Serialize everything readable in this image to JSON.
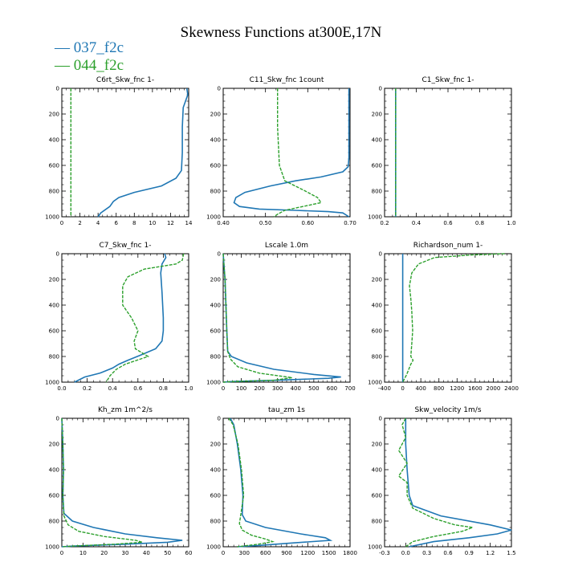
{
  "title": "Skewness Functions at300E,17N",
  "legend": [
    {
      "label": "— 037_f2c",
      "color": "#1f77b4"
    },
    {
      "label": "— 044_f2c",
      "color": "#2ca02c"
    }
  ],
  "chart_data": [
    {
      "type": "line",
      "title": "C6rt_Skw_fnc 1-",
      "xlim": [
        0,
        14
      ],
      "ylim": [
        1000,
        0
      ],
      "xticks": [
        "0",
        "2",
        "4",
        "6",
        "8",
        "10",
        "12",
        "14"
      ],
      "yticks": [
        "0",
        "200",
        "400",
        "600",
        "800",
        "1000"
      ],
      "series": [
        {
          "name": "037_f2c",
          "points": [
            [
              13.8,
              0
            ],
            [
              13.9,
              50
            ],
            [
              13.4,
              150
            ],
            [
              13.3,
              300
            ],
            [
              13.3,
              500
            ],
            [
              13.2,
              640
            ],
            [
              12.6,
              700
            ],
            [
              11,
              760
            ],
            [
              8,
              810
            ],
            [
              6.3,
              850
            ],
            [
              5.7,
              880
            ],
            [
              5.3,
              920
            ],
            [
              4.3,
              970
            ],
            [
              4,
              1000
            ]
          ]
        },
        {
          "name": "044_f2c",
          "points": [
            [
              1,
              0
            ],
            [
              1,
              1000
            ]
          ]
        }
      ]
    },
    {
      "type": "line",
      "title": "C11_Skw_fnc 1count",
      "xlim": [
        0.35,
        0.7
      ],
      "ylim": [
        1000,
        0
      ],
      "xticks": [
        "0.40",
        "0.50",
        "0.60",
        "0.70"
      ],
      "yticks": [
        "0",
        "200",
        "400",
        "600",
        "800",
        "1000"
      ],
      "series": [
        {
          "name": "037_f2c",
          "points": [
            [
              0.697,
              0
            ],
            [
              0.697,
              540
            ],
            [
              0.695,
              610
            ],
            [
              0.68,
              650
            ],
            [
              0.62,
              690
            ],
            [
              0.55,
              720
            ],
            [
              0.48,
              760
            ],
            [
              0.41,
              810
            ],
            [
              0.385,
              850
            ],
            [
              0.38,
              890
            ],
            [
              0.395,
              920
            ],
            [
              0.45,
              940
            ],
            [
              0.55,
              950
            ],
            [
              0.64,
              960
            ],
            [
              0.68,
              970
            ],
            [
              0.697,
              1000
            ]
          ]
        },
        {
          "name": "044_f2c",
          "points": [
            [
              0.5,
              0
            ],
            [
              0.5,
              300
            ],
            [
              0.505,
              600
            ],
            [
              0.52,
              720
            ],
            [
              0.57,
              790
            ],
            [
              0.61,
              850
            ],
            [
              0.62,
              890
            ],
            [
              0.57,
              920
            ],
            [
              0.52,
              950
            ],
            [
              0.5,
              980
            ],
            [
              0.49,
              1000
            ]
          ]
        }
      ]
    },
    {
      "type": "line",
      "title": "C1_Skw_fnc 1-",
      "xlim": [
        0.2,
        1.0
      ],
      "ylim": [
        1000,
        0
      ],
      "xticks": [
        "0.2",
        "0.4",
        "0.6",
        "0.8",
        "1.0"
      ],
      "yticks": [
        "0",
        "200",
        "400",
        "600",
        "800",
        "1000"
      ],
      "series": [
        {
          "name": "037_f2c",
          "points": [
            [
              0.27,
              0
            ],
            [
              0.27,
              1000
            ]
          ]
        },
        {
          "name": "044_f2c",
          "points": [
            [
              0.27,
              0
            ],
            [
              0.27,
              1000
            ]
          ]
        }
      ]
    },
    {
      "type": "line",
      "title": "C7_Skw_fnc 1-",
      "xlim": [
        0.0,
        1.0
      ],
      "ylim": [
        1000,
        0
      ],
      "xticks": [
        "0.0",
        "0.2",
        "0.4",
        "0.6",
        "0.8",
        "1.0"
      ],
      "yticks": [
        "0",
        "200",
        "400",
        "600",
        "800",
        "1000"
      ],
      "series": [
        {
          "name": "037_f2c",
          "points": [
            [
              0.81,
              0
            ],
            [
              0.82,
              30
            ],
            [
              0.79,
              80
            ],
            [
              0.78,
              150
            ],
            [
              0.79,
              300
            ],
            [
              0.8,
              500
            ],
            [
              0.8,
              600
            ],
            [
              0.79,
              680
            ],
            [
              0.74,
              740
            ],
            [
              0.62,
              790
            ],
            [
              0.52,
              830
            ],
            [
              0.45,
              860
            ],
            [
              0.4,
              890
            ],
            [
              0.3,
              930
            ],
            [
              0.18,
              960
            ],
            [
              0.1,
              1000
            ]
          ]
        },
        {
          "name": "044_f2c",
          "points": [
            [
              0.96,
              0
            ],
            [
              0.95,
              50
            ],
            [
              0.9,
              80
            ],
            [
              0.65,
              120
            ],
            [
              0.52,
              180
            ],
            [
              0.48,
              250
            ],
            [
              0.48,
              400
            ],
            [
              0.55,
              500
            ],
            [
              0.6,
              600
            ],
            [
              0.57,
              680
            ],
            [
              0.58,
              740
            ],
            [
              0.68,
              800
            ],
            [
              0.5,
              860
            ],
            [
              0.43,
              900
            ],
            [
              0.38,
              950
            ],
            [
              0.35,
              1000
            ]
          ]
        }
      ]
    },
    {
      "type": "line",
      "title": "Lscale 1.0m",
      "xlim": [
        0,
        700
      ],
      "ylim": [
        1000,
        0
      ],
      "xticks": [
        "0",
        "100",
        "200",
        "300",
        "400",
        "500",
        "600",
        "700"
      ],
      "yticks": [
        "0",
        "200",
        "400",
        "600",
        "800",
        "1000"
      ],
      "series": [
        {
          "name": "037_f2c",
          "points": [
            [
              0,
              0
            ],
            [
              5,
              100
            ],
            [
              10,
              200
            ],
            [
              15,
              400
            ],
            [
              20,
              600
            ],
            [
              25,
              760
            ],
            [
              45,
              800
            ],
            [
              130,
              850
            ],
            [
              280,
              900
            ],
            [
              500,
              940
            ],
            [
              650,
              960
            ],
            [
              580,
              970
            ],
            [
              300,
              985
            ],
            [
              50,
              995
            ],
            [
              0,
              1000
            ]
          ]
        },
        {
          "name": "044_f2c",
          "points": [
            [
              0,
              0
            ],
            [
              5,
              100
            ],
            [
              10,
              200
            ],
            [
              15,
              400
            ],
            [
              20,
              600
            ],
            [
              25,
              760
            ],
            [
              40,
              820
            ],
            [
              80,
              880
            ],
            [
              200,
              930
            ],
            [
              380,
              965
            ],
            [
              280,
              985
            ],
            [
              60,
              995
            ],
            [
              0,
              1000
            ]
          ]
        }
      ]
    },
    {
      "type": "line",
      "title": "Richardson_num 1-",
      "xlim": [
        -400,
        2400
      ],
      "ylim": [
        1000,
        0
      ],
      "xticks": [
        "-400",
        "0",
        "400",
        "800",
        "1200",
        "1600",
        "2000",
        "2400"
      ],
      "yticks": [
        "0",
        "200",
        "400",
        "600",
        "800",
        "1000"
      ],
      "series": [
        {
          "name": "037_f2c",
          "points": [
            [
              0,
              0
            ],
            [
              0,
              1000
            ]
          ]
        },
        {
          "name": "044_f2c",
          "points": [
            [
              2250,
              0
            ],
            [
              1500,
              10
            ],
            [
              700,
              30
            ],
            [
              350,
              80
            ],
            [
              200,
              150
            ],
            [
              150,
              250
            ],
            [
              180,
              350
            ],
            [
              200,
              450
            ],
            [
              220,
              600
            ],
            [
              200,
              700
            ],
            [
              180,
              800
            ],
            [
              230,
              830
            ],
            [
              180,
              860
            ],
            [
              90,
              940
            ],
            [
              0,
              1000
            ]
          ]
        }
      ]
    },
    {
      "type": "line",
      "title": "Kh_zm 1m^2/s",
      "xlim": [
        0,
        60
      ],
      "ylim": [
        1000,
        0
      ],
      "xticks": [
        "0",
        "10",
        "20",
        "30",
        "40",
        "50",
        "60"
      ],
      "yticks": [
        "0",
        "200",
        "400",
        "600",
        "800",
        "1000"
      ],
      "series": [
        {
          "name": "037_f2c",
          "points": [
            [
              0,
              0
            ],
            [
              0.5,
              200
            ],
            [
              0.8,
              400
            ],
            [
              0.5,
              600
            ],
            [
              1,
              740
            ],
            [
              5,
              800
            ],
            [
              15,
              850
            ],
            [
              30,
              900
            ],
            [
              45,
              930
            ],
            [
              57,
              950
            ],
            [
              50,
              965
            ],
            [
              30,
              980
            ],
            [
              5,
              995
            ],
            [
              0,
              1000
            ]
          ]
        },
        {
          "name": "044_f2c",
          "points": [
            [
              0,
              0
            ],
            [
              0.5,
              200
            ],
            [
              0.8,
              400
            ],
            [
              0.5,
              600
            ],
            [
              1,
              760
            ],
            [
              3,
              830
            ],
            [
              8,
              880
            ],
            [
              20,
              920
            ],
            [
              35,
              950
            ],
            [
              38,
              965
            ],
            [
              25,
              980
            ],
            [
              5,
              995
            ],
            [
              0,
              1000
            ]
          ]
        }
      ]
    },
    {
      "type": "line",
      "title": "tau_zm 1s",
      "xlim": [
        0,
        1800
      ],
      "ylim": [
        1000,
        0
      ],
      "xticks": [
        "0",
        "300",
        "600",
        "900",
        "1200",
        "1500",
        "1800"
      ],
      "yticks": [
        "0",
        "200",
        "400",
        "600",
        "800",
        "1000"
      ],
      "series": [
        {
          "name": "037_f2c",
          "points": [
            [
              100,
              0
            ],
            [
              150,
              50
            ],
            [
              200,
              200
            ],
            [
              250,
              400
            ],
            [
              280,
              600
            ],
            [
              270,
              750
            ],
            [
              320,
              800
            ],
            [
              600,
              850
            ],
            [
              1100,
              900
            ],
            [
              1450,
              930
            ],
            [
              1520,
              950
            ],
            [
              1000,
              970
            ],
            [
              500,
              990
            ],
            [
              200,
              1000
            ]
          ]
        },
        {
          "name": "044_f2c",
          "points": [
            [
              80,
              0
            ],
            [
              140,
              50
            ],
            [
              210,
              200
            ],
            [
              260,
              400
            ],
            [
              290,
              600
            ],
            [
              250,
              750
            ],
            [
              230,
              820
            ],
            [
              270,
              870
            ],
            [
              400,
              910
            ],
            [
              600,
              940
            ],
            [
              700,
              960
            ],
            [
              500,
              980
            ],
            [
              200,
              1000
            ]
          ]
        }
      ]
    },
    {
      "type": "line",
      "title": "Skw_velocity 1m/s",
      "xlim": [
        -0.3,
        1.5
      ],
      "ylim": [
        1000,
        0
      ],
      "xticks": [
        "-0.3",
        "0.0",
        "0.3",
        "0.6",
        "0.9",
        "1.2",
        "1.5"
      ],
      "yticks": [
        "0",
        "200",
        "400",
        "600",
        "800",
        "1000"
      ],
      "series": [
        {
          "name": "037_f2c",
          "points": [
            [
              0,
              0
            ],
            [
              0,
              200
            ],
            [
              0.02,
              400
            ],
            [
              0.05,
              600
            ],
            [
              0.1,
              680
            ],
            [
              0.5,
              760
            ],
            [
              1.2,
              830
            ],
            [
              1.5,
              870
            ],
            [
              1.3,
              900
            ],
            [
              0.9,
              930
            ],
            [
              0.4,
              960
            ],
            [
              0.05,
              1000
            ]
          ]
        },
        {
          "name": "044_f2c",
          "points": [
            [
              0,
              0
            ],
            [
              -0.05,
              50
            ],
            [
              0,
              150
            ],
            [
              -0.1,
              250
            ],
            [
              0.02,
              350
            ],
            [
              -0.1,
              450
            ],
            [
              0.02,
              500
            ],
            [
              0.02,
              600
            ],
            [
              0.1,
              700
            ],
            [
              0.4,
              780
            ],
            [
              0.7,
              830
            ],
            [
              0.95,
              850
            ],
            [
              0.8,
              880
            ],
            [
              0.4,
              920
            ],
            [
              0.1,
              960
            ],
            [
              0,
              1000
            ]
          ]
        }
      ]
    }
  ]
}
